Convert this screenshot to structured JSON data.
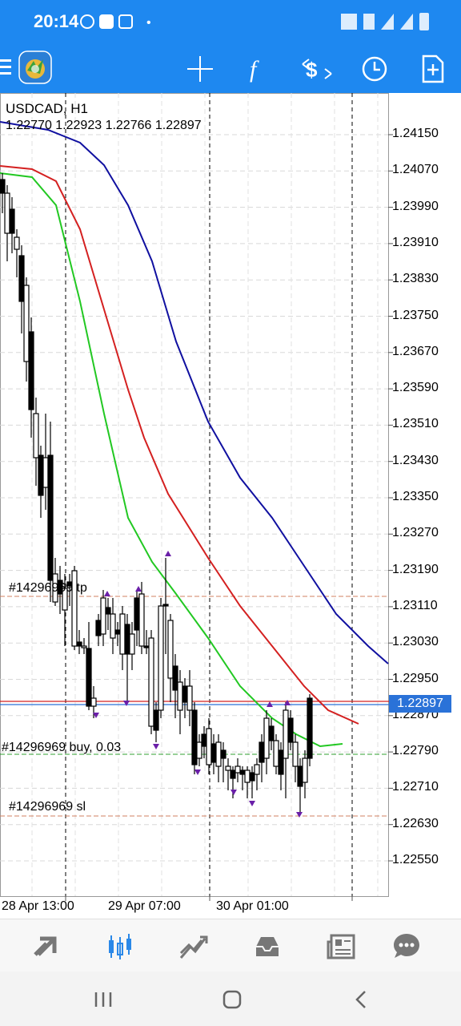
{
  "status_bar": {
    "time": "20:14",
    "notifications": [
      "whatsapp-icon",
      "tradingview-icon",
      "instagram-icon"
    ],
    "dot": "•",
    "system_icons": [
      "mute-icon",
      "data-icon",
      "signal-icon",
      "signal-icon-2",
      "battery-icon"
    ]
  },
  "toolbar": {
    "icons": [
      "menu-icon",
      "metatrader-logo-icon",
      "crosshair-icon",
      "indicators-icon",
      "trade-icon",
      "timeframe-icon",
      "new-order-icon"
    ]
  },
  "chart": {
    "symbol_label": "USDCAD, H1",
    "ohlc_label": "1.22770 1.22923 1.22766 1.22897",
    "price_labels": [
      "1.24150",
      "1.24070",
      "1.23990",
      "1.23910",
      "1.23830",
      "1.23750",
      "1.23670",
      "1.23590",
      "1.23510",
      "1.23430",
      "1.23350",
      "1.23270",
      "1.23190",
      "1.23110",
      "1.23030",
      "1.22950",
      "1.22870",
      "1.22790",
      "1.22710",
      "1.22630",
      "1.22550"
    ],
    "current_price": "1.22897",
    "time_labels": [
      "28 Apr 13:00",
      "29 Apr 07:00",
      "30 Apr 01:00"
    ],
    "trade_labels": {
      "tp": "#14296969 tp",
      "buy": "#14296969 buy, 0.03",
      "sl": "#14296969 sl"
    },
    "colors": {
      "ma_fast": "#22c822",
      "ma_mid": "#d42020",
      "ma_slow": "#1010a0",
      "tp_line": "#d08060",
      "buy_line": "#30a030",
      "sl_line": "#d08060",
      "price_tag": "#2a72d8",
      "fractal": "#6a1fa8"
    }
  },
  "bottom_nav": {
    "items": [
      "quotes-icon",
      "chart-icon",
      "trade-icon",
      "history-icon",
      "news-icon",
      "messages-icon"
    ],
    "active_index": 1
  },
  "system_nav": {
    "items": [
      "recent-apps-icon",
      "home-icon",
      "back-icon"
    ]
  }
}
